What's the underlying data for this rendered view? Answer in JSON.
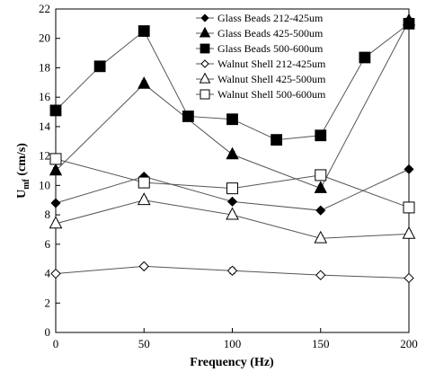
{
  "chart_data": {
    "type": "line",
    "title": "",
    "xlabel": "Frequency (Hz)",
    "ylabel_main": "U",
    "ylabel_sub": "mf",
    "ylabel_unit": " (cm/s)",
    "xlim": [
      0,
      200
    ],
    "ylim": [
      0,
      22
    ],
    "xticks": [
      0,
      50,
      100,
      150,
      200
    ],
    "yticks": [
      0,
      2,
      4,
      6,
      8,
      10,
      12,
      14,
      16,
      18,
      20,
      22
    ],
    "grid": false,
    "legend_position": "top-right",
    "series": [
      {
        "name": "Glass Beads 212-425um",
        "marker": "diamond",
        "filled": true,
        "points": [
          [
            0,
            8.8
          ],
          [
            50,
            10.6
          ],
          [
            100,
            8.9
          ],
          [
            150,
            8.3
          ],
          [
            200,
            11.1
          ]
        ],
        "errors": [
          0.15,
          0.15,
          0.15,
          0.15,
          0.15
        ]
      },
      {
        "name": "Glass Beads 425-500um",
        "marker": "triangle",
        "filled": true,
        "points": [
          [
            0,
            11.0
          ],
          [
            50,
            16.9
          ],
          [
            100,
            12.1
          ],
          [
            150,
            9.8
          ],
          [
            200,
            21.2
          ]
        ],
        "errors": [
          0.2,
          0.2,
          0.2,
          0.2,
          0.2
        ]
      },
      {
        "name": "Glass Beads 500-600um",
        "marker": "square",
        "filled": true,
        "points": [
          [
            0,
            15.1
          ],
          [
            25,
            18.1
          ],
          [
            50,
            20.5
          ],
          [
            75,
            14.7
          ],
          [
            100,
            14.5
          ],
          [
            125,
            13.1
          ],
          [
            150,
            13.4
          ],
          [
            175,
            18.7
          ],
          [
            200,
            21.0
          ]
        ],
        "errors": [
          0.2,
          0.2,
          0.2,
          0.2,
          0.2,
          0.2,
          0.2,
          0.2,
          0.2
        ]
      },
      {
        "name": "Walnut Shell 212-425um",
        "marker": "diamond",
        "filled": false,
        "points": [
          [
            0,
            4.0
          ],
          [
            50,
            4.5
          ],
          [
            100,
            4.2
          ],
          [
            150,
            3.9
          ],
          [
            200,
            3.7
          ]
        ],
        "errors": [
          0.15,
          0.15,
          0.2,
          0.15,
          0.15
        ]
      },
      {
        "name": "Walnut Shell 425-500um",
        "marker": "triangle",
        "filled": false,
        "points": [
          [
            0,
            7.4
          ],
          [
            50,
            9.0
          ],
          [
            100,
            8.0
          ],
          [
            150,
            6.4
          ],
          [
            200,
            6.7
          ]
        ],
        "errors": [
          0.2,
          0.2,
          0.2,
          0.2,
          0.2
        ]
      },
      {
        "name": "Walnut Shell 500-600um",
        "marker": "square",
        "filled": false,
        "points": [
          [
            0,
            11.8
          ],
          [
            50,
            10.2
          ],
          [
            100,
            9.8
          ],
          [
            150,
            10.7
          ],
          [
            200,
            8.5
          ]
        ],
        "errors": [
          0.3,
          0.3,
          0.3,
          0.3,
          0.3
        ]
      }
    ]
  }
}
